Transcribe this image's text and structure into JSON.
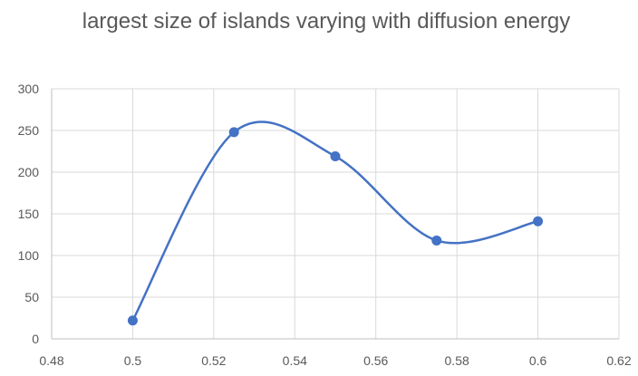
{
  "chart_data": {
    "type": "scatter",
    "title": "largest size of islands varying with diffusion energy",
    "xlabel": "",
    "ylabel": "",
    "xlim": [
      0.48,
      0.62
    ],
    "ylim": [
      0,
      300
    ],
    "x_ticks": [
      0.48,
      0.5,
      0.52,
      0.54,
      0.56,
      0.58,
      0.6,
      0.62
    ],
    "y_ticks": [
      0,
      50,
      100,
      150,
      200,
      250,
      300
    ],
    "x_tick_labels": [
      "0.48",
      "0.5",
      "0.52",
      "0.54",
      "0.56",
      "0.58",
      "0.6",
      "0.62"
    ],
    "y_tick_labels": [
      "0",
      "50",
      "100",
      "150",
      "200",
      "250",
      "300"
    ],
    "grid": true,
    "legend": "none",
    "smooth_line": true,
    "series": [
      {
        "color": "#4472C4",
        "x": [
          0.5,
          0.525,
          0.55,
          0.575,
          0.6
        ],
        "y": [
          22,
          248,
          219,
          118,
          141
        ]
      }
    ]
  }
}
